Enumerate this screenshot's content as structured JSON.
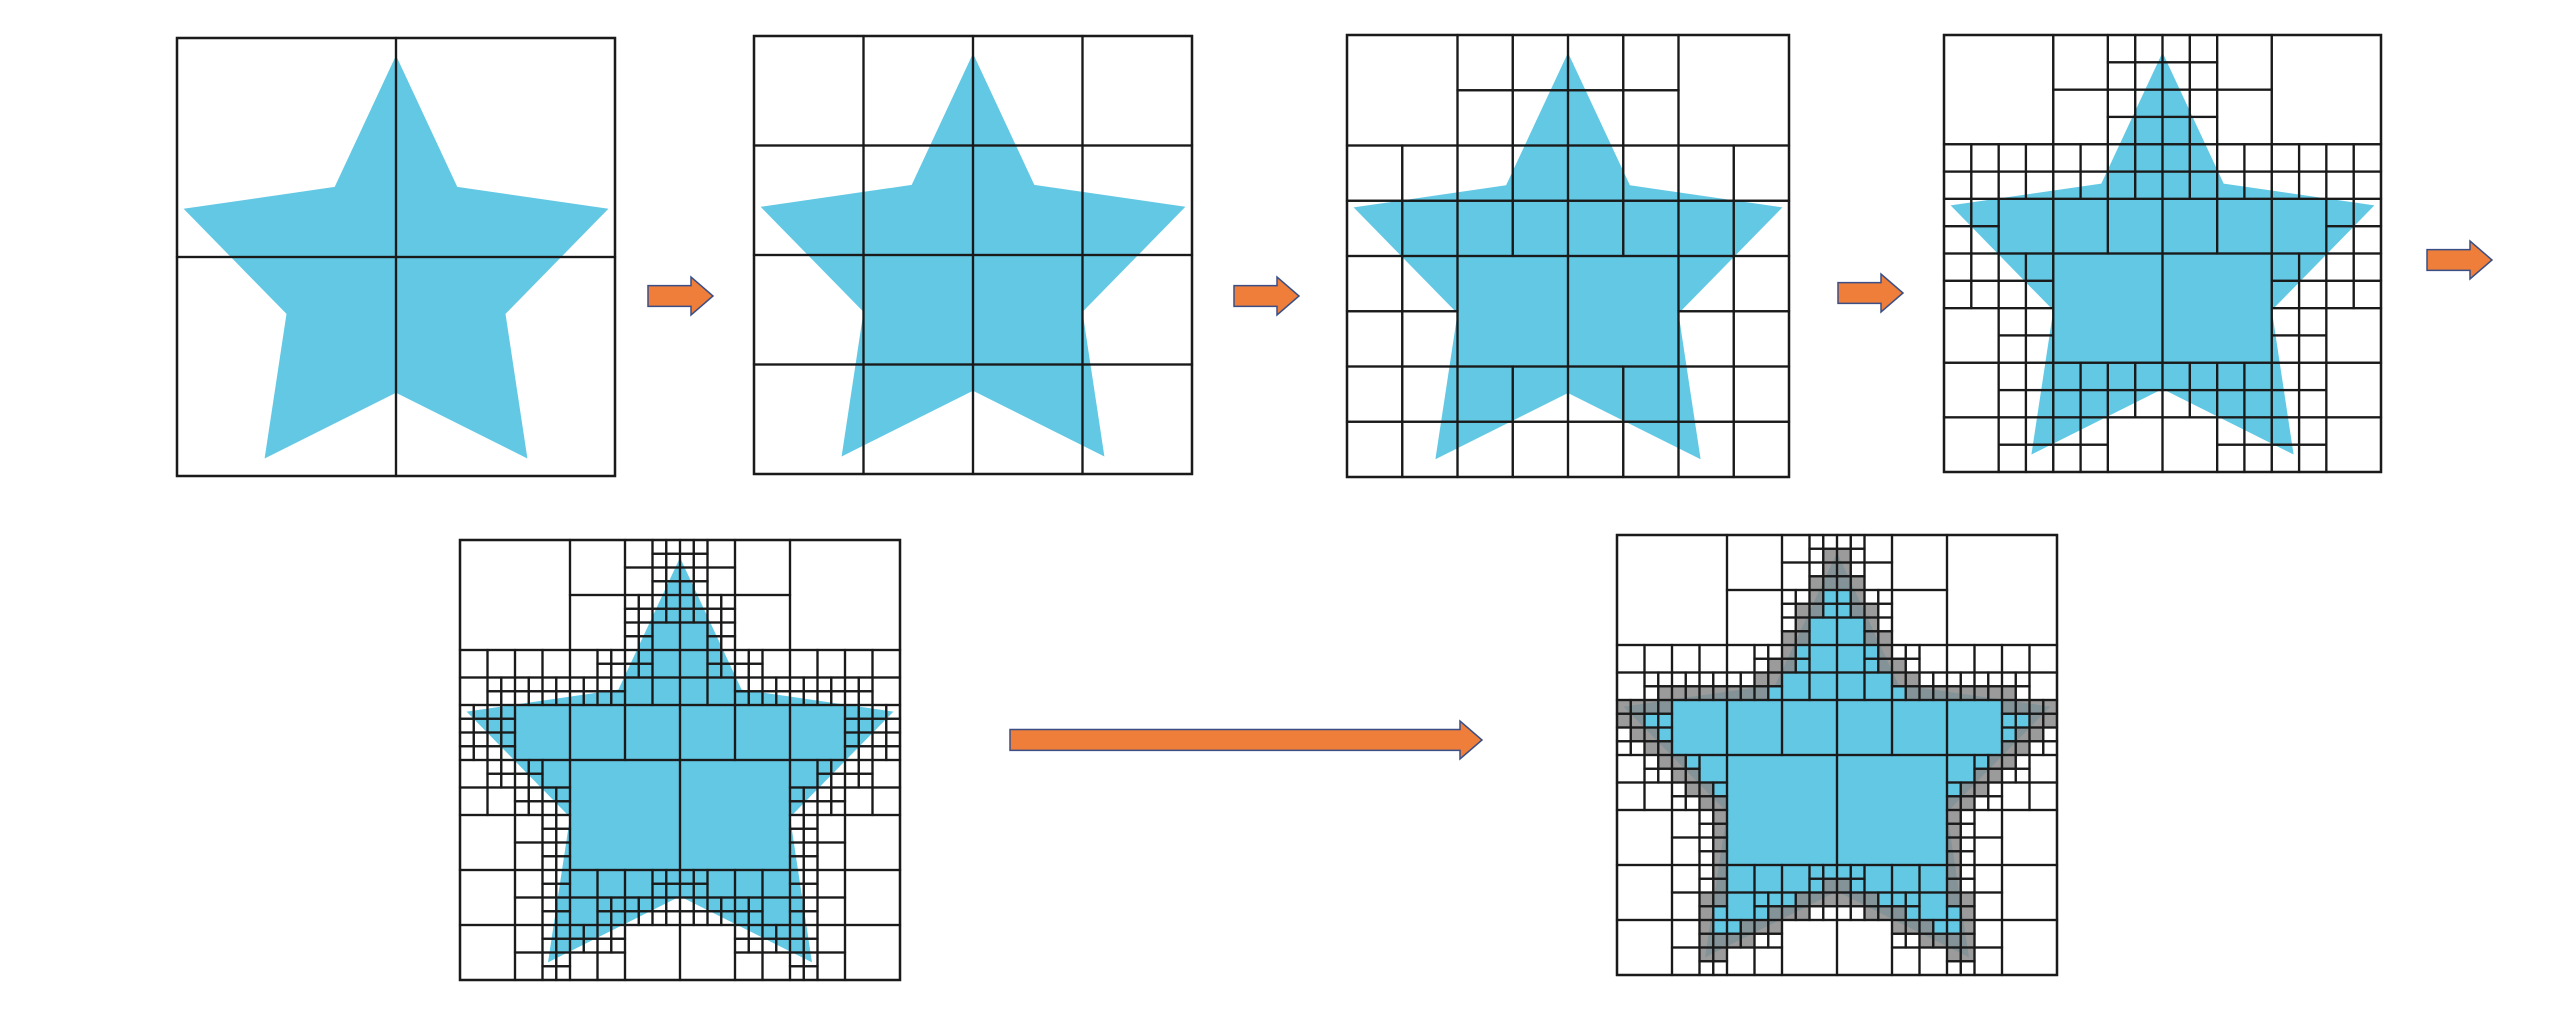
{
  "diagram": {
    "description_visible_text": "",
    "colors": {
      "star_fill": "#62C8E4",
      "grid_stroke": "#1a1a1a",
      "arrow_fill": "#EE7E3A",
      "arrow_stroke": "#3B4F86",
      "boundary_cell_fill": "#8a8a8a",
      "background": "#ffffff"
    },
    "panels": [
      {
        "name": "level-1",
        "subdivision_depth": 1,
        "shaded_boundary": false
      },
      {
        "name": "level-2",
        "subdivision_depth": 2,
        "shaded_boundary": false
      },
      {
        "name": "level-3",
        "subdivision_depth": 3,
        "shaded_boundary": false
      },
      {
        "name": "level-4",
        "subdivision_depth": 4,
        "shaded_boundary": false
      },
      {
        "name": "level-5",
        "subdivision_depth": 5,
        "shaded_boundary": false
      },
      {
        "name": "level-5-boundary",
        "subdivision_depth": 5,
        "shaded_boundary": true
      }
    ],
    "arrows": [
      {
        "name": "arrow-1-to-2",
        "style": "short"
      },
      {
        "name": "arrow-2-to-3",
        "style": "short"
      },
      {
        "name": "arrow-3-to-4",
        "style": "short"
      },
      {
        "name": "arrow-4-to-next",
        "style": "short"
      },
      {
        "name": "arrow-5-to-boundary",
        "style": "long"
      }
    ]
  }
}
